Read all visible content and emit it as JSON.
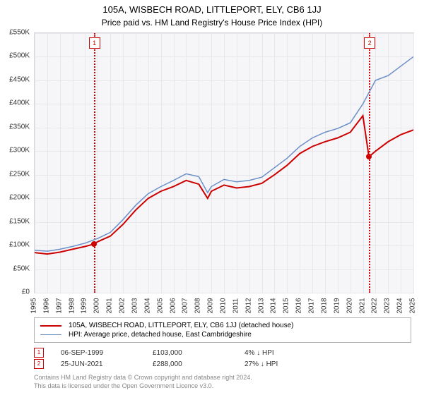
{
  "title": "105A, WISBECH ROAD, LITTLEPORT, ELY, CB6 1JJ",
  "subtitle": "Price paid vs. HM Land Registry's House Price Index (HPI)",
  "chart": {
    "type": "line",
    "background_color": "#f6f6f8",
    "grid_color": "#e8e8ec",
    "border_color": "#d8d8dc",
    "ylim": [
      0,
      550000
    ],
    "ytick_step": 50000,
    "y_format": "£K",
    "xlim": [
      1995,
      2025
    ],
    "xticks": [
      1995,
      1996,
      1997,
      1998,
      1999,
      2000,
      2001,
      2002,
      2003,
      2004,
      2005,
      2006,
      2007,
      2008,
      2009,
      2010,
      2011,
      2012,
      2013,
      2014,
      2015,
      2016,
      2017,
      2018,
      2019,
      2020,
      2021,
      2022,
      2023,
      2024,
      2025
    ],
    "series": [
      {
        "id": "property",
        "label": "105A, WISBECH ROAD, LITTLEPORT, ELY, CB6 1JJ (detached house)",
        "color": "#cc0000",
        "line_width": 2,
        "data": [
          [
            1995,
            85000
          ],
          [
            1996,
            82000
          ],
          [
            1997,
            86000
          ],
          [
            1998,
            92000
          ],
          [
            1999,
            98000
          ],
          [
            1999.68,
            103000
          ],
          [
            2000,
            108000
          ],
          [
            2001,
            120000
          ],
          [
            2002,
            145000
          ],
          [
            2003,
            175000
          ],
          [
            2004,
            200000
          ],
          [
            2005,
            215000
          ],
          [
            2006,
            225000
          ],
          [
            2007,
            238000
          ],
          [
            2008,
            230000
          ],
          [
            2008.7,
            200000
          ],
          [
            2009,
            215000
          ],
          [
            2010,
            228000
          ],
          [
            2011,
            222000
          ],
          [
            2012,
            225000
          ],
          [
            2013,
            232000
          ],
          [
            2014,
            250000
          ],
          [
            2015,
            270000
          ],
          [
            2016,
            295000
          ],
          [
            2017,
            310000
          ],
          [
            2018,
            320000
          ],
          [
            2019,
            328000
          ],
          [
            2020,
            340000
          ],
          [
            2021,
            375000
          ],
          [
            2021.48,
            288000
          ],
          [
            2022,
            300000
          ],
          [
            2023,
            320000
          ],
          [
            2024,
            335000
          ],
          [
            2025,
            345000
          ]
        ]
      },
      {
        "id": "hpi",
        "label": "HPI: Average price, detached house, East Cambridgeshire",
        "color": "#6b8fc9",
        "line_width": 1.5,
        "data": [
          [
            1995,
            90000
          ],
          [
            1996,
            88000
          ],
          [
            1997,
            92000
          ],
          [
            1998,
            98000
          ],
          [
            1999,
            105000
          ],
          [
            2000,
            115000
          ],
          [
            2001,
            128000
          ],
          [
            2002,
            155000
          ],
          [
            2003,
            185000
          ],
          [
            2004,
            210000
          ],
          [
            2005,
            225000
          ],
          [
            2006,
            238000
          ],
          [
            2007,
            252000
          ],
          [
            2008,
            246000
          ],
          [
            2008.7,
            212000
          ],
          [
            2009,
            225000
          ],
          [
            2010,
            240000
          ],
          [
            2011,
            235000
          ],
          [
            2012,
            238000
          ],
          [
            2013,
            245000
          ],
          [
            2014,
            265000
          ],
          [
            2015,
            285000
          ],
          [
            2016,
            310000
          ],
          [
            2017,
            328000
          ],
          [
            2018,
            340000
          ],
          [
            2019,
            348000
          ],
          [
            2020,
            360000
          ],
          [
            2021,
            400000
          ],
          [
            2022,
            450000
          ],
          [
            2023,
            460000
          ],
          [
            2024,
            480000
          ],
          [
            2025,
            500000
          ]
        ]
      }
    ],
    "markers": [
      {
        "num": "1",
        "x": 1999.68,
        "y": 103000
      },
      {
        "num": "2",
        "x": 2021.48,
        "y": 288000
      }
    ]
  },
  "legend": {
    "border_color": "#b0b0b0"
  },
  "sales": [
    {
      "num": "1",
      "date": "06-SEP-1999",
      "price": "£103,000",
      "delta": "4% ↓ HPI"
    },
    {
      "num": "2",
      "date": "25-JUN-2021",
      "price": "£288,000",
      "delta": "27% ↓ HPI"
    }
  ],
  "footer": {
    "line1": "Contains HM Land Registry data © Crown copyright and database right 2024.",
    "line2": "This data is licensed under the Open Government Licence v3.0."
  }
}
